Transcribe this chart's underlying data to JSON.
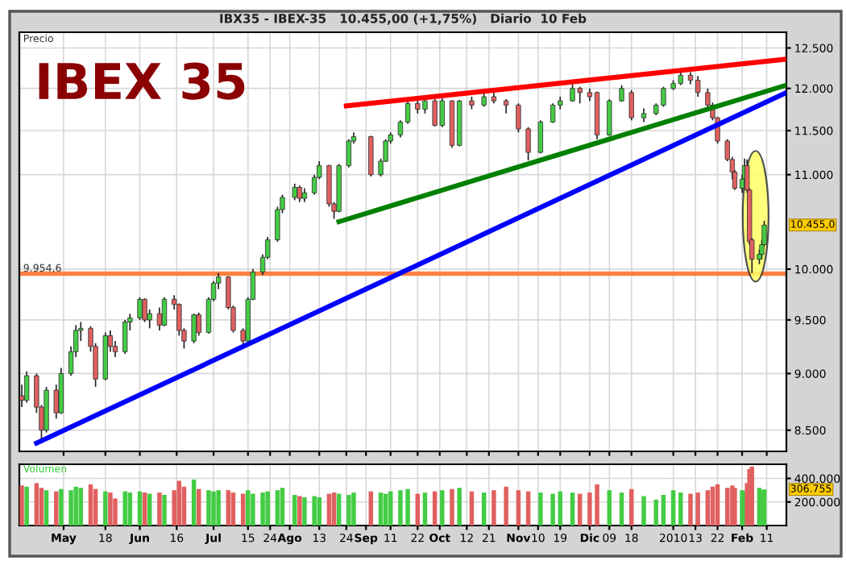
{
  "chart_data": [
    {
      "type": "candlestick",
      "title": "IBEX 35",
      "subtitle": "IBX35 - IBEX-35   10.455,00 (+1,75%)   Diario  10 Feb",
      "ylabel": "Precio",
      "x": [
        "2009-04-14",
        "2009-04-16",
        "2009-04-20",
        "2009-04-22",
        "2009-04-24",
        "2009-04-28",
        "2009-04-30",
        "2009-05-04",
        "2009-05-06",
        "2009-05-08",
        "2009-05-12",
        "2009-05-14",
        "2009-05-18",
        "2009-05-20",
        "2009-05-22",
        "2009-05-26",
        "2009-05-28",
        "2009-06-01",
        "2009-06-03",
        "2009-06-05",
        "2009-06-09",
        "2009-06-11",
        "2009-06-15",
        "2009-06-17",
        "2009-06-19",
        "2009-06-23",
        "2009-06-25",
        "2009-06-29",
        "2009-07-01",
        "2009-07-03",
        "2009-07-07",
        "2009-07-09",
        "2009-07-13",
        "2009-07-15",
        "2009-07-17",
        "2009-07-21",
        "2009-07-23",
        "2009-07-27",
        "2009-07-29",
        "2009-08-03",
        "2009-08-05",
        "2009-08-07",
        "2009-08-11",
        "2009-08-13",
        "2009-08-17",
        "2009-08-19",
        "2009-08-21",
        "2009-08-25",
        "2009-08-27",
        "2009-09-03",
        "2009-09-07",
        "2009-09-09",
        "2009-09-11",
        "2009-09-15",
        "2009-09-18",
        "2009-09-22",
        "2009-09-25",
        "2009-09-29",
        "2009-10-02",
        "2009-10-06",
        "2009-10-09",
        "2009-10-14",
        "2009-10-19",
        "2009-10-23",
        "2009-10-28",
        "2009-11-02",
        "2009-11-06",
        "2009-11-11",
        "2009-11-16",
        "2009-11-19",
        "2009-11-24",
        "2009-11-27",
        "2009-12-01",
        "2009-12-04",
        "2009-12-09",
        "2009-12-14",
        "2009-12-18",
        "2009-12-23",
        "2009-12-28",
        "2009-12-31",
        "2010-01-04",
        "2010-01-07",
        "2010-01-11",
        "2010-01-14",
        "2010-01-18",
        "2010-01-20",
        "2010-01-22",
        "2010-01-26",
        "2010-01-28",
        "2010-01-29",
        "2010-02-01",
        "2010-02-02",
        "2010-02-03",
        "2010-02-04",
        "2010-02-05",
        "2010-02-08",
        "2010-02-09",
        "2010-02-10"
      ],
      "ohlc": [
        [
          8800,
          8900,
          8700,
          8760
        ],
        [
          8760,
          9020,
          8740,
          8980
        ],
        [
          8980,
          9000,
          8650,
          8700
        ],
        [
          8700,
          8720,
          8420,
          8500
        ],
        [
          8500,
          8880,
          8480,
          8850
        ],
        [
          8850,
          8900,
          8600,
          8650
        ],
        [
          8650,
          9050,
          8640,
          9000
        ],
        [
          9000,
          9250,
          8980,
          9200
        ],
        [
          9200,
          9450,
          9150,
          9400
        ],
        [
          9400,
          9480,
          9300,
          9420
        ],
        [
          9420,
          9440,
          9200,
          9250
        ],
        [
          9250,
          9280,
          8880,
          8950
        ],
        [
          8950,
          9380,
          8940,
          9350
        ],
        [
          9350,
          9400,
          9200,
          9250
        ],
        [
          9250,
          9300,
          9150,
          9200
        ],
        [
          9200,
          9500,
          9180,
          9480
        ],
        [
          9480,
          9560,
          9400,
          9520
        ],
        [
          9520,
          9720,
          9500,
          9700
        ],
        [
          9700,
          9710,
          9480,
          9500
        ],
        [
          9500,
          9600,
          9420,
          9560
        ],
        [
          9560,
          9620,
          9400,
          9450
        ],
        [
          9450,
          9720,
          9440,
          9700
        ],
        [
          9700,
          9740,
          9600,
          9650
        ],
        [
          9650,
          9660,
          9350,
          9400
        ],
        [
          9400,
          9420,
          9230,
          9300
        ],
        [
          9300,
          9560,
          9280,
          9550
        ],
        [
          9550,
          9570,
          9350,
          9380
        ],
        [
          9380,
          9720,
          9370,
          9700
        ],
        [
          9700,
          9880,
          9680,
          9860
        ],
        [
          9860,
          9960,
          9800,
          9920
        ],
        [
          9920,
          9930,
          9600,
          9620
        ],
        [
          9620,
          9640,
          9380,
          9400
        ],
        [
          9400,
          9420,
          9250,
          9300
        ],
        [
          9300,
          9720,
          9290,
          9700
        ],
        [
          9700,
          10000,
          9690,
          9970
        ],
        [
          9970,
          10150,
          9940,
          10120
        ],
        [
          10120,
          10330,
          10100,
          10300
        ],
        [
          10300,
          10650,
          10280,
          10620
        ],
        [
          10620,
          10780,
          10580,
          10750
        ],
        [
          10750,
          10900,
          10720,
          10860
        ],
        [
          10860,
          10880,
          10700,
          10740
        ],
        [
          10740,
          10850,
          10700,
          10800
        ],
        [
          10800,
          11000,
          10780,
          10970
        ],
        [
          10970,
          11150,
          10950,
          11100
        ],
        [
          11100,
          11110,
          10650,
          10680
        ],
        [
          10680,
          10700,
          10520,
          10600
        ],
        [
          10600,
          11120,
          10590,
          11100
        ],
        [
          11100,
          11400,
          11080,
          11380
        ],
        [
          11380,
          11480,
          11350,
          11430
        ],
        [
          11430,
          11440,
          10980,
          11000
        ],
        [
          11000,
          11180,
          10980,
          11150
        ],
        [
          11150,
          11400,
          11140,
          11380
        ],
        [
          11380,
          11480,
          11350,
          11450
        ],
        [
          11450,
          11620,
          11420,
          11600
        ],
        [
          11600,
          11850,
          11580,
          11820
        ],
        [
          11820,
          11900,
          11700,
          11750
        ],
        [
          11750,
          11880,
          11700,
          11850
        ],
        [
          11850,
          11870,
          11550,
          11560
        ],
        [
          11560,
          11880,
          11540,
          11850
        ],
        [
          11850,
          11860,
          11300,
          11330
        ],
        [
          11330,
          11860,
          11320,
          11850
        ],
        [
          11850,
          11900,
          11750,
          11800
        ],
        [
          11800,
          11950,
          11780,
          11900
        ],
        [
          11900,
          11980,
          11820,
          11850
        ],
        [
          11850,
          11870,
          11700,
          11800
        ],
        [
          11800,
          11820,
          11480,
          11520
        ],
        [
          11520,
          11540,
          11160,
          11250
        ],
        [
          11250,
          11620,
          11240,
          11600
        ],
        [
          11600,
          11820,
          11590,
          11800
        ],
        [
          11800,
          11900,
          11750,
          11850
        ],
        [
          11850,
          12050,
          11840,
          12000
        ],
        [
          12000,
          12020,
          11820,
          11950
        ],
        [
          11950,
          12000,
          11850,
          11900
        ],
        [
          11950,
          11960,
          11400,
          11450
        ],
        [
          11450,
          11870,
          11440,
          11850
        ],
        [
          11850,
          12040,
          11840,
          12000
        ],
        [
          11950,
          11980,
          11620,
          11650
        ],
        [
          11650,
          11760,
          11600,
          11700
        ],
        [
          11700,
          11820,
          11680,
          11800
        ],
        [
          11800,
          12020,
          11780,
          12000
        ],
        [
          12000,
          12100,
          11980,
          12060
        ],
        [
          12060,
          12220,
          12040,
          12160
        ],
        [
          12160,
          12200,
          12050,
          12100
        ],
        [
          12100,
          12150,
          11900,
          11950
        ],
        [
          11950,
          12000,
          11780,
          11800
        ],
        [
          11800,
          11830,
          11620,
          11650
        ],
        [
          11650,
          11660,
          11350,
          11380
        ],
        [
          11380,
          11400,
          11150,
          11170
        ],
        [
          11170,
          11200,
          10950,
          11030
        ],
        [
          11030,
          11050,
          10830,
          10850
        ],
        [
          10850,
          11000,
          10800,
          10950
        ],
        [
          10950,
          11180,
          10900,
          11100
        ],
        [
          11100,
          11170,
          10800,
          10830
        ],
        [
          10830,
          10850,
          10250,
          10280
        ],
        [
          10300,
          10320,
          9960,
          10100
        ],
        [
          10100,
          10200,
          10050,
          10150
        ],
        [
          10150,
          10300,
          10100,
          10250
        ],
        [
          10250,
          10500,
          10230,
          10455
        ]
      ],
      "colors": [
        "#e06060",
        "#44cc44",
        "#e06060",
        "#e06060",
        "#44cc44",
        "#e06060",
        "#44cc44",
        "#44cc44",
        "#44cc44",
        "#44cc44",
        "#e06060",
        "#e06060",
        "#44cc44",
        "#e06060",
        "#e06060",
        "#44cc44",
        "#44cc44",
        "#44cc44",
        "#e06060",
        "#44cc44",
        "#e06060",
        "#44cc44",
        "#e06060",
        "#e06060",
        "#e06060",
        "#44cc44",
        "#e06060",
        "#44cc44",
        "#44cc44",
        "#44cc44",
        "#e06060",
        "#e06060",
        "#e06060",
        "#44cc44",
        "#44cc44",
        "#44cc44",
        "#44cc44",
        "#44cc44",
        "#44cc44",
        "#44cc44",
        "#e06060",
        "#44cc44",
        "#44cc44",
        "#44cc44",
        "#e06060",
        "#e06060",
        "#44cc44",
        "#44cc44",
        "#44cc44",
        "#e06060",
        "#44cc44",
        "#44cc44",
        "#44cc44",
        "#44cc44",
        "#44cc44",
        "#e06060",
        "#44cc44",
        "#e06060",
        "#44cc44",
        "#e06060",
        "#44cc44",
        "#e06060",
        "#44cc44",
        "#e06060",
        "#e06060",
        "#e06060",
        "#e06060",
        "#44cc44",
        "#44cc44",
        "#44cc44",
        "#44cc44",
        "#e06060",
        "#e06060",
        "#e06060",
        "#44cc44",
        "#44cc44",
        "#e06060",
        "#44cc44",
        "#44cc44",
        "#44cc44",
        "#44cc44",
        "#44cc44",
        "#e06060",
        "#e06060",
        "#e06060",
        "#e06060",
        "#e06060",
        "#e06060",
        "#e06060",
        "#e06060",
        "#44cc44",
        "#44cc44",
        "#e06060",
        "#e06060",
        "#e06060",
        "#44cc44",
        "#44cc44",
        "#44cc44"
      ],
      "series": [
        {
          "type": "line",
          "color": "#ff0000",
          "x": [
            "2009-08-24",
            "2010-02-19"
          ],
          "values": [
            11790,
            12360
          ]
        },
        {
          "type": "line",
          "color": "#008000",
          "x": [
            "2009-08-21",
            "2010-02-19"
          ],
          "values": [
            10490,
            12040
          ]
        },
        {
          "type": "line",
          "color": "#0000ff",
          "x": [
            "2009-04-20",
            "2010-02-19"
          ],
          "values": [
            8390,
            11950
          ]
        }
      ],
      "ref_lines": [
        {
          "axis": "y",
          "value": 9954.6,
          "label": "9.954,6",
          "color": "#ff8040"
        }
      ],
      "annotations": [
        "10.455,0"
      ],
      "log": "y",
      "xlim": [
        "2009-04-13",
        "2010-02-19"
      ],
      "xticks": [
        {
          "value": "2009-05-01",
          "label": null
        },
        {
          "value": "2009-05-18",
          "label": null
        },
        {
          "value": "2009-06-01",
          "label": null
        },
        {
          "value": "2009-06-16",
          "label": null
        },
        {
          "value": "2009-07-01",
          "label": null
        },
        {
          "value": "2009-07-15",
          "label": null
        },
        {
          "value": "2009-07-24",
          "label": null
        },
        {
          "value": "2009-08-01",
          "label": null
        },
        {
          "value": "2009-08-13",
          "label": null
        },
        {
          "value": "2009-08-24",
          "label": null
        },
        {
          "value": "2009-09-01",
          "label": null
        },
        {
          "value": "2009-09-11",
          "label": null
        },
        {
          "value": "2009-09-22",
          "label": null
        },
        {
          "value": "2009-10-01",
          "label": null
        },
        {
          "value": "2009-10-12",
          "label": null
        },
        {
          "value": "2009-10-21",
          "label": null
        },
        {
          "value": "2009-11-02",
          "label": null
        },
        {
          "value": "2009-11-10",
          "label": null
        },
        {
          "value": "2009-11-19",
          "label": null
        },
        {
          "value": "2009-12-01",
          "label": null
        },
        {
          "value": "2009-12-09",
          "label": null
        },
        {
          "value": "2009-12-18",
          "label": null
        },
        {
          "value": "2010-01-04",
          "label": null
        },
        {
          "value": "2010-01-13",
          "label": null
        },
        {
          "value": "2010-01-22",
          "label": null
        },
        {
          "value": "2010-02-01",
          "label": null
        },
        {
          "value": "2010-02-11",
          "label": null
        }
      ],
      "ylim": [
        8320,
        12700
      ],
      "yticks": [
        {
          "value": 8500,
          "label": "8.500"
        },
        {
          "value": 9000,
          "label": "9.000"
        },
        {
          "value": 9500,
          "label": "9.500"
        },
        {
          "value": 10000,
          "label": "10.000"
        },
        {
          "value": 11000,
          "label": "11.000"
        },
        {
          "value": 11500,
          "label": "11.500"
        },
        {
          "value": 12000,
          "label": "12.000"
        },
        {
          "value": 12500,
          "label": "12.500"
        }
      ],
      "grid": true,
      "tick_labels": "y"
    },
    {
      "type": "bar",
      "ylabel": "Volumen",
      "x": [
        "2009-04-14",
        "2009-04-16",
        "2009-04-20",
        "2009-04-22",
        "2009-04-24",
        "2009-04-28",
        "2009-04-30",
        "2009-05-04",
        "2009-05-06",
        "2009-05-08",
        "2009-05-12",
        "2009-05-14",
        "2009-05-18",
        "2009-05-20",
        "2009-05-22",
        "2009-05-26",
        "2009-05-28",
        "2009-06-01",
        "2009-06-03",
        "2009-06-05",
        "2009-06-09",
        "2009-06-11",
        "2009-06-15",
        "2009-06-17",
        "2009-06-19",
        "2009-06-23",
        "2009-06-25",
        "2009-06-29",
        "2009-07-01",
        "2009-07-03",
        "2009-07-07",
        "2009-07-09",
        "2009-07-13",
        "2009-07-15",
        "2009-07-17",
        "2009-07-21",
        "2009-07-23",
        "2009-07-27",
        "2009-07-29",
        "2009-08-03",
        "2009-08-05",
        "2009-08-07",
        "2009-08-11",
        "2009-08-13",
        "2009-08-17",
        "2009-08-19",
        "2009-08-21",
        "2009-08-25",
        "2009-08-27",
        "2009-09-03",
        "2009-09-07",
        "2009-09-09",
        "2009-09-11",
        "2009-09-15",
        "2009-09-18",
        "2009-09-22",
        "2009-09-25",
        "2009-09-29",
        "2009-10-02",
        "2009-10-06",
        "2009-10-09",
        "2009-10-14",
        "2009-10-19",
        "2009-10-23",
        "2009-10-28",
        "2009-11-02",
        "2009-11-06",
        "2009-11-11",
        "2009-11-16",
        "2009-11-19",
        "2009-11-24",
        "2009-11-27",
        "2009-12-01",
        "2009-12-04",
        "2009-12-09",
        "2009-12-14",
        "2009-12-18",
        "2009-12-23",
        "2009-12-28",
        "2009-12-31",
        "2010-01-04",
        "2010-01-07",
        "2010-01-11",
        "2010-01-14",
        "2010-01-18",
        "2010-01-20",
        "2010-01-22",
        "2010-01-26",
        "2010-01-28",
        "2010-01-29",
        "2010-02-01",
        "2010-02-02",
        "2010-02-03",
        "2010-02-04",
        "2010-02-05",
        "2010-02-08",
        "2010-02-09",
        "2010-02-10"
      ],
      "values": [
        340000,
        330000,
        360000,
        320000,
        300000,
        290000,
        310000,
        300000,
        330000,
        320000,
        350000,
        310000,
        290000,
        280000,
        230000,
        290000,
        280000,
        290000,
        280000,
        270000,
        280000,
        260000,
        300000,
        380000,
        330000,
        390000,
        310000,
        300000,
        290000,
        300000,
        300000,
        280000,
        270000,
        300000,
        270000,
        280000,
        290000,
        300000,
        320000,
        260000,
        250000,
        240000,
        250000,
        240000,
        270000,
        280000,
        270000,
        260000,
        280000,
        290000,
        280000,
        270000,
        290000,
        300000,
        310000,
        270000,
        280000,
        290000,
        300000,
        310000,
        320000,
        290000,
        280000,
        300000,
        330000,
        300000,
        290000,
        280000,
        270000,
        290000,
        280000,
        270000,
        280000,
        350000,
        300000,
        280000,
        310000,
        250000,
        220000,
        260000,
        300000,
        280000,
        270000,
        280000,
        300000,
        330000,
        350000,
        320000,
        340000,
        320000,
        300000,
        290000,
        360000,
        480000,
        500000,
        320000,
        300000,
        306755
      ],
      "colors": [
        "#e06060",
        "#44cc44",
        "#e06060",
        "#e06060",
        "#44cc44",
        "#e06060",
        "#44cc44",
        "#44cc44",
        "#44cc44",
        "#44cc44",
        "#e06060",
        "#e06060",
        "#44cc44",
        "#e06060",
        "#e06060",
        "#44cc44",
        "#44cc44",
        "#44cc44",
        "#e06060",
        "#44cc44",
        "#e06060",
        "#44cc44",
        "#e06060",
        "#e06060",
        "#e06060",
        "#44cc44",
        "#e06060",
        "#44cc44",
        "#44cc44",
        "#44cc44",
        "#e06060",
        "#e06060",
        "#e06060",
        "#44cc44",
        "#44cc44",
        "#44cc44",
        "#44cc44",
        "#44cc44",
        "#44cc44",
        "#44cc44",
        "#e06060",
        "#44cc44",
        "#44cc44",
        "#44cc44",
        "#e06060",
        "#e06060",
        "#44cc44",
        "#44cc44",
        "#44cc44",
        "#e06060",
        "#44cc44",
        "#44cc44",
        "#44cc44",
        "#44cc44",
        "#44cc44",
        "#e06060",
        "#44cc44",
        "#e06060",
        "#44cc44",
        "#e06060",
        "#44cc44",
        "#e06060",
        "#44cc44",
        "#e06060",
        "#e06060",
        "#e06060",
        "#e06060",
        "#44cc44",
        "#44cc44",
        "#44cc44",
        "#44cc44",
        "#e06060",
        "#e06060",
        "#e06060",
        "#44cc44",
        "#44cc44",
        "#e06060",
        "#44cc44",
        "#44cc44",
        "#44cc44",
        "#44cc44",
        "#44cc44",
        "#e06060",
        "#e06060",
        "#e06060",
        "#e06060",
        "#e06060",
        "#e06060",
        "#e06060",
        "#e06060",
        "#44cc44",
        "#44cc44",
        "#e06060",
        "#e06060",
        "#e06060",
        "#44cc44",
        "#44cc44",
        "#44cc44"
      ],
      "annotations": [
        "306.755"
      ],
      "xlim": [
        "2009-04-13",
        "2010-02-19"
      ],
      "xticks": [
        {
          "value": "2009-05-01",
          "label": "May"
        },
        {
          "value": "2009-05-18",
          "label": "18"
        },
        {
          "value": "2009-06-01",
          "label": "Jun"
        },
        {
          "value": "2009-06-16",
          "label": "16"
        },
        {
          "value": "2009-07-01",
          "label": "Jul"
        },
        {
          "value": "2009-07-15",
          "label": "15"
        },
        {
          "value": "2009-07-24",
          "label": "24"
        },
        {
          "value": "2009-08-01",
          "label": "Ago"
        },
        {
          "value": "2009-08-13",
          "label": "13"
        },
        {
          "value": "2009-08-24",
          "label": "24"
        },
        {
          "value": "2009-09-01",
          "label": "Sep"
        },
        {
          "value": "2009-09-11",
          "label": "11"
        },
        {
          "value": "2009-09-22",
          "label": "22"
        },
        {
          "value": "2009-10-01",
          "label": "Oct"
        },
        {
          "value": "2009-10-12",
          "label": "12"
        },
        {
          "value": "2009-10-21",
          "label": "21"
        },
        {
          "value": "2009-11-02",
          "label": "Nov"
        },
        {
          "value": "2009-11-10",
          "label": "10"
        },
        {
          "value": "2009-11-19",
          "label": "19"
        },
        {
          "value": "2009-12-01",
          "label": "Dic"
        },
        {
          "value": "2009-12-09",
          "label": "09"
        },
        {
          "value": "2009-12-18",
          "label": "18"
        },
        {
          "value": "2010-01-04",
          "label": "2010"
        },
        {
          "value": "2010-01-13",
          "label": "13"
        },
        {
          "value": "2010-01-22",
          "label": "22"
        },
        {
          "value": "2010-02-01",
          "label": "Feb"
        },
        {
          "value": "2010-02-11",
          "label": "11"
        }
      ],
      "ylim": [
        0,
        520000
      ],
      "yticks": [
        {
          "value": 200000,
          "label": "200.000"
        },
        {
          "value": 400000,
          "label": "400.000"
        }
      ],
      "grid": true
    }
  ]
}
